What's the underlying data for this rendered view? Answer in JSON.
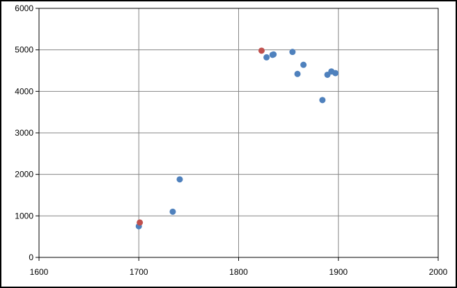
{
  "chart_data": {
    "type": "scatter",
    "title": "",
    "xlabel": "",
    "ylabel": "",
    "xlim": [
      1600,
      2000
    ],
    "ylim": [
      0,
      6000
    ],
    "xticks": [
      1600,
      1700,
      1800,
      1900,
      2000
    ],
    "yticks": [
      0,
      1000,
      2000,
      3000,
      4000,
      5000,
      6000
    ],
    "grid": true,
    "legend": "none",
    "series": [
      {
        "color": "#4F81BD",
        "points": [
          {
            "x": 1700,
            "y": 750
          },
          {
            "x": 1734,
            "y": 1100
          },
          {
            "x": 1741,
            "y": 1880
          },
          {
            "x": 1828,
            "y": 4820
          },
          {
            "x": 1834,
            "y": 4880
          },
          {
            "x": 1835,
            "y": 4890
          },
          {
            "x": 1854,
            "y": 4950
          },
          {
            "x": 1859,
            "y": 4420
          },
          {
            "x": 1865,
            "y": 4640
          },
          {
            "x": 1884,
            "y": 3790
          },
          {
            "x": 1889,
            "y": 4400
          },
          {
            "x": 1893,
            "y": 4480
          },
          {
            "x": 1897,
            "y": 4440
          }
        ]
      },
      {
        "color": "#C0504D",
        "points": [
          {
            "x": 1701,
            "y": 840
          },
          {
            "x": 1823,
            "y": 4980
          }
        ]
      }
    ]
  }
}
